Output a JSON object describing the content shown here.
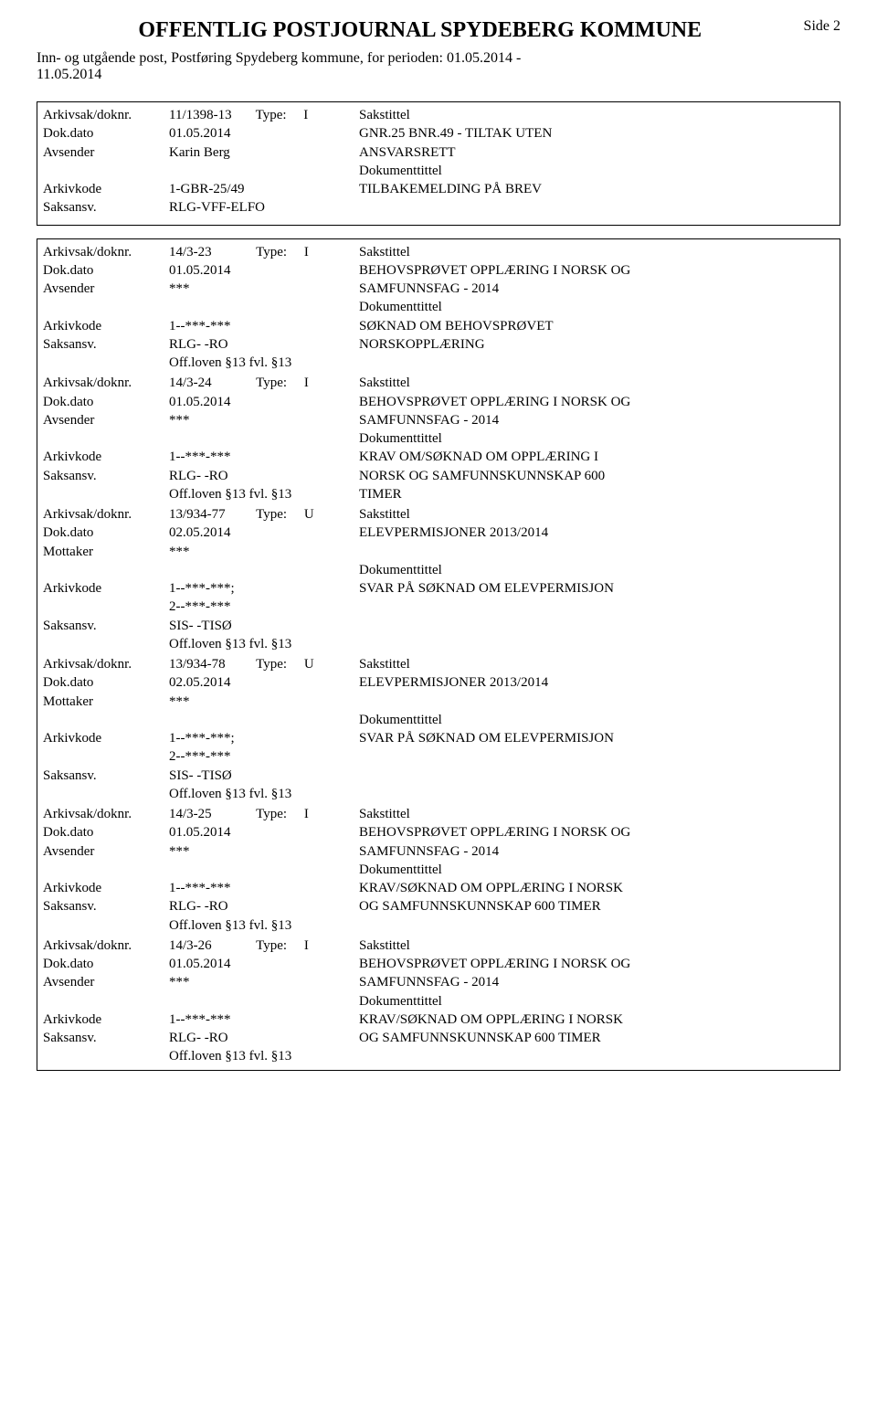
{
  "header": {
    "main_title": "OFFENTLIG POSTJOURNAL SPYDEBERG KOMMUNE",
    "subtitle_line1": "Inn- og utgående post, Postføring Spydeberg kommune, for perioden: 01.05.2014 -",
    "subtitle_line2": "11.05.2014",
    "page_label": "Side 2"
  },
  "labels": {
    "arkivsak": "Arkivsak/doknr.",
    "dokdato": "Dok.dato",
    "avsender": "Avsender",
    "mottaker": "Mottaker",
    "arkivkode": "Arkivkode",
    "saksansv": "Saksansv.",
    "sakstittel": "Sakstittel",
    "dokumenttittel": "Dokumenttittel",
    "type": "Type:"
  },
  "box1": {
    "arkivsak": "11/1398-13",
    "type_letter": "I",
    "dokdato": "01.05.2014",
    "avsender": "Karin Berg",
    "arkivkode": "1-GBR-25/49",
    "saksansv": "RLG-VFF-ELFO",
    "sak_line1": "GNR.25 BNR.49 - TILTAK UTEN",
    "sak_line2": "ANSVARSRETT",
    "dok_line1": "TILBAKEMELDING PÅ BREV"
  },
  "box2": {
    "e1": {
      "arkivsak": "14/3-23",
      "type_letter": "I",
      "dokdato": "01.05.2014",
      "avsender": "***",
      "arkivkode": "1--***-***",
      "saksansv": "RLG- -RO",
      "offloven": "Off.loven §13  fvl. §13",
      "sak_line1": "BEHOVSPRØVET OPPLÆRING I NORSK OG",
      "sak_line2": "SAMFUNNSFAG - 2014",
      "dok_line1": "SØKNAD OM BEHOVSPRØVET",
      "dok_line2": "NORSKOPPLÆRING"
    },
    "e2": {
      "arkivsak": "14/3-24",
      "type_letter": "I",
      "dokdato": "01.05.2014",
      "avsender": "***",
      "arkivkode": "1--***-***",
      "saksansv": "RLG- -RO",
      "offloven": "Off.loven §13  fvl. §13",
      "sak_line1": "BEHOVSPRØVET OPPLÆRING I NORSK OG",
      "sak_line2": "SAMFUNNSFAG - 2014",
      "dok_line1": "KRAV OM/SØKNAD OM OPPLÆRING I",
      "dok_line2": "NORSK OG SAMFUNNSKUNNSKAP 600",
      "dok_line3": "TIMER"
    },
    "e3": {
      "arkivsak": "13/934-77",
      "type_letter": "U",
      "dokdato": "02.05.2014",
      "mottaker": "***",
      "arkivkode_line1": "1--***-***;",
      "arkivkode_line2": "2--***-***",
      "saksansv": "SIS- -TISØ",
      "offloven": "Off.loven §13  fvl. §13",
      "sak_line1": "ELEVPERMISJONER 2013/2014",
      "dok_line1": "SVAR PÅ SØKNAD OM ELEVPERMISJON"
    },
    "e4": {
      "arkivsak": "13/934-78",
      "type_letter": "U",
      "dokdato": "02.05.2014",
      "mottaker": "***",
      "arkivkode_line1": "1--***-***;",
      "arkivkode_line2": "2--***-***",
      "saksansv": "SIS- -TISØ",
      "offloven": "Off.loven §13  fvl. §13",
      "sak_line1": "ELEVPERMISJONER 2013/2014",
      "dok_line1": "SVAR PÅ SØKNAD OM ELEVPERMISJON"
    },
    "e5": {
      "arkivsak": "14/3-25",
      "type_letter": "I",
      "dokdato": "01.05.2014",
      "avsender": "***",
      "arkivkode": "1--***-***",
      "saksansv": "RLG- -RO",
      "offloven": "Off.loven §13  fvl. §13",
      "sak_line1": "BEHOVSPRØVET OPPLÆRING I NORSK OG",
      "sak_line2": "SAMFUNNSFAG - 2014",
      "dok_line1": "KRAV/SØKNAD OM OPPLÆRING I NORSK",
      "dok_line2": "OG SAMFUNNSKUNNSKAP 600 TIMER"
    },
    "e6": {
      "arkivsak": "14/3-26",
      "type_letter": "I",
      "dokdato": "01.05.2014",
      "avsender": "***",
      "arkivkode": "1--***-***",
      "saksansv": "RLG- -RO",
      "offloven": "Off.loven §13  fvl. §13",
      "sak_line1": "BEHOVSPRØVET OPPLÆRING I NORSK OG",
      "sak_line2": "SAMFUNNSFAG - 2014",
      "dok_line1": "KRAV/SØKNAD OM OPPLÆRING I NORSK",
      "dok_line2": "OG SAMFUNNSKUNNSKAP 600 TIMER"
    }
  }
}
